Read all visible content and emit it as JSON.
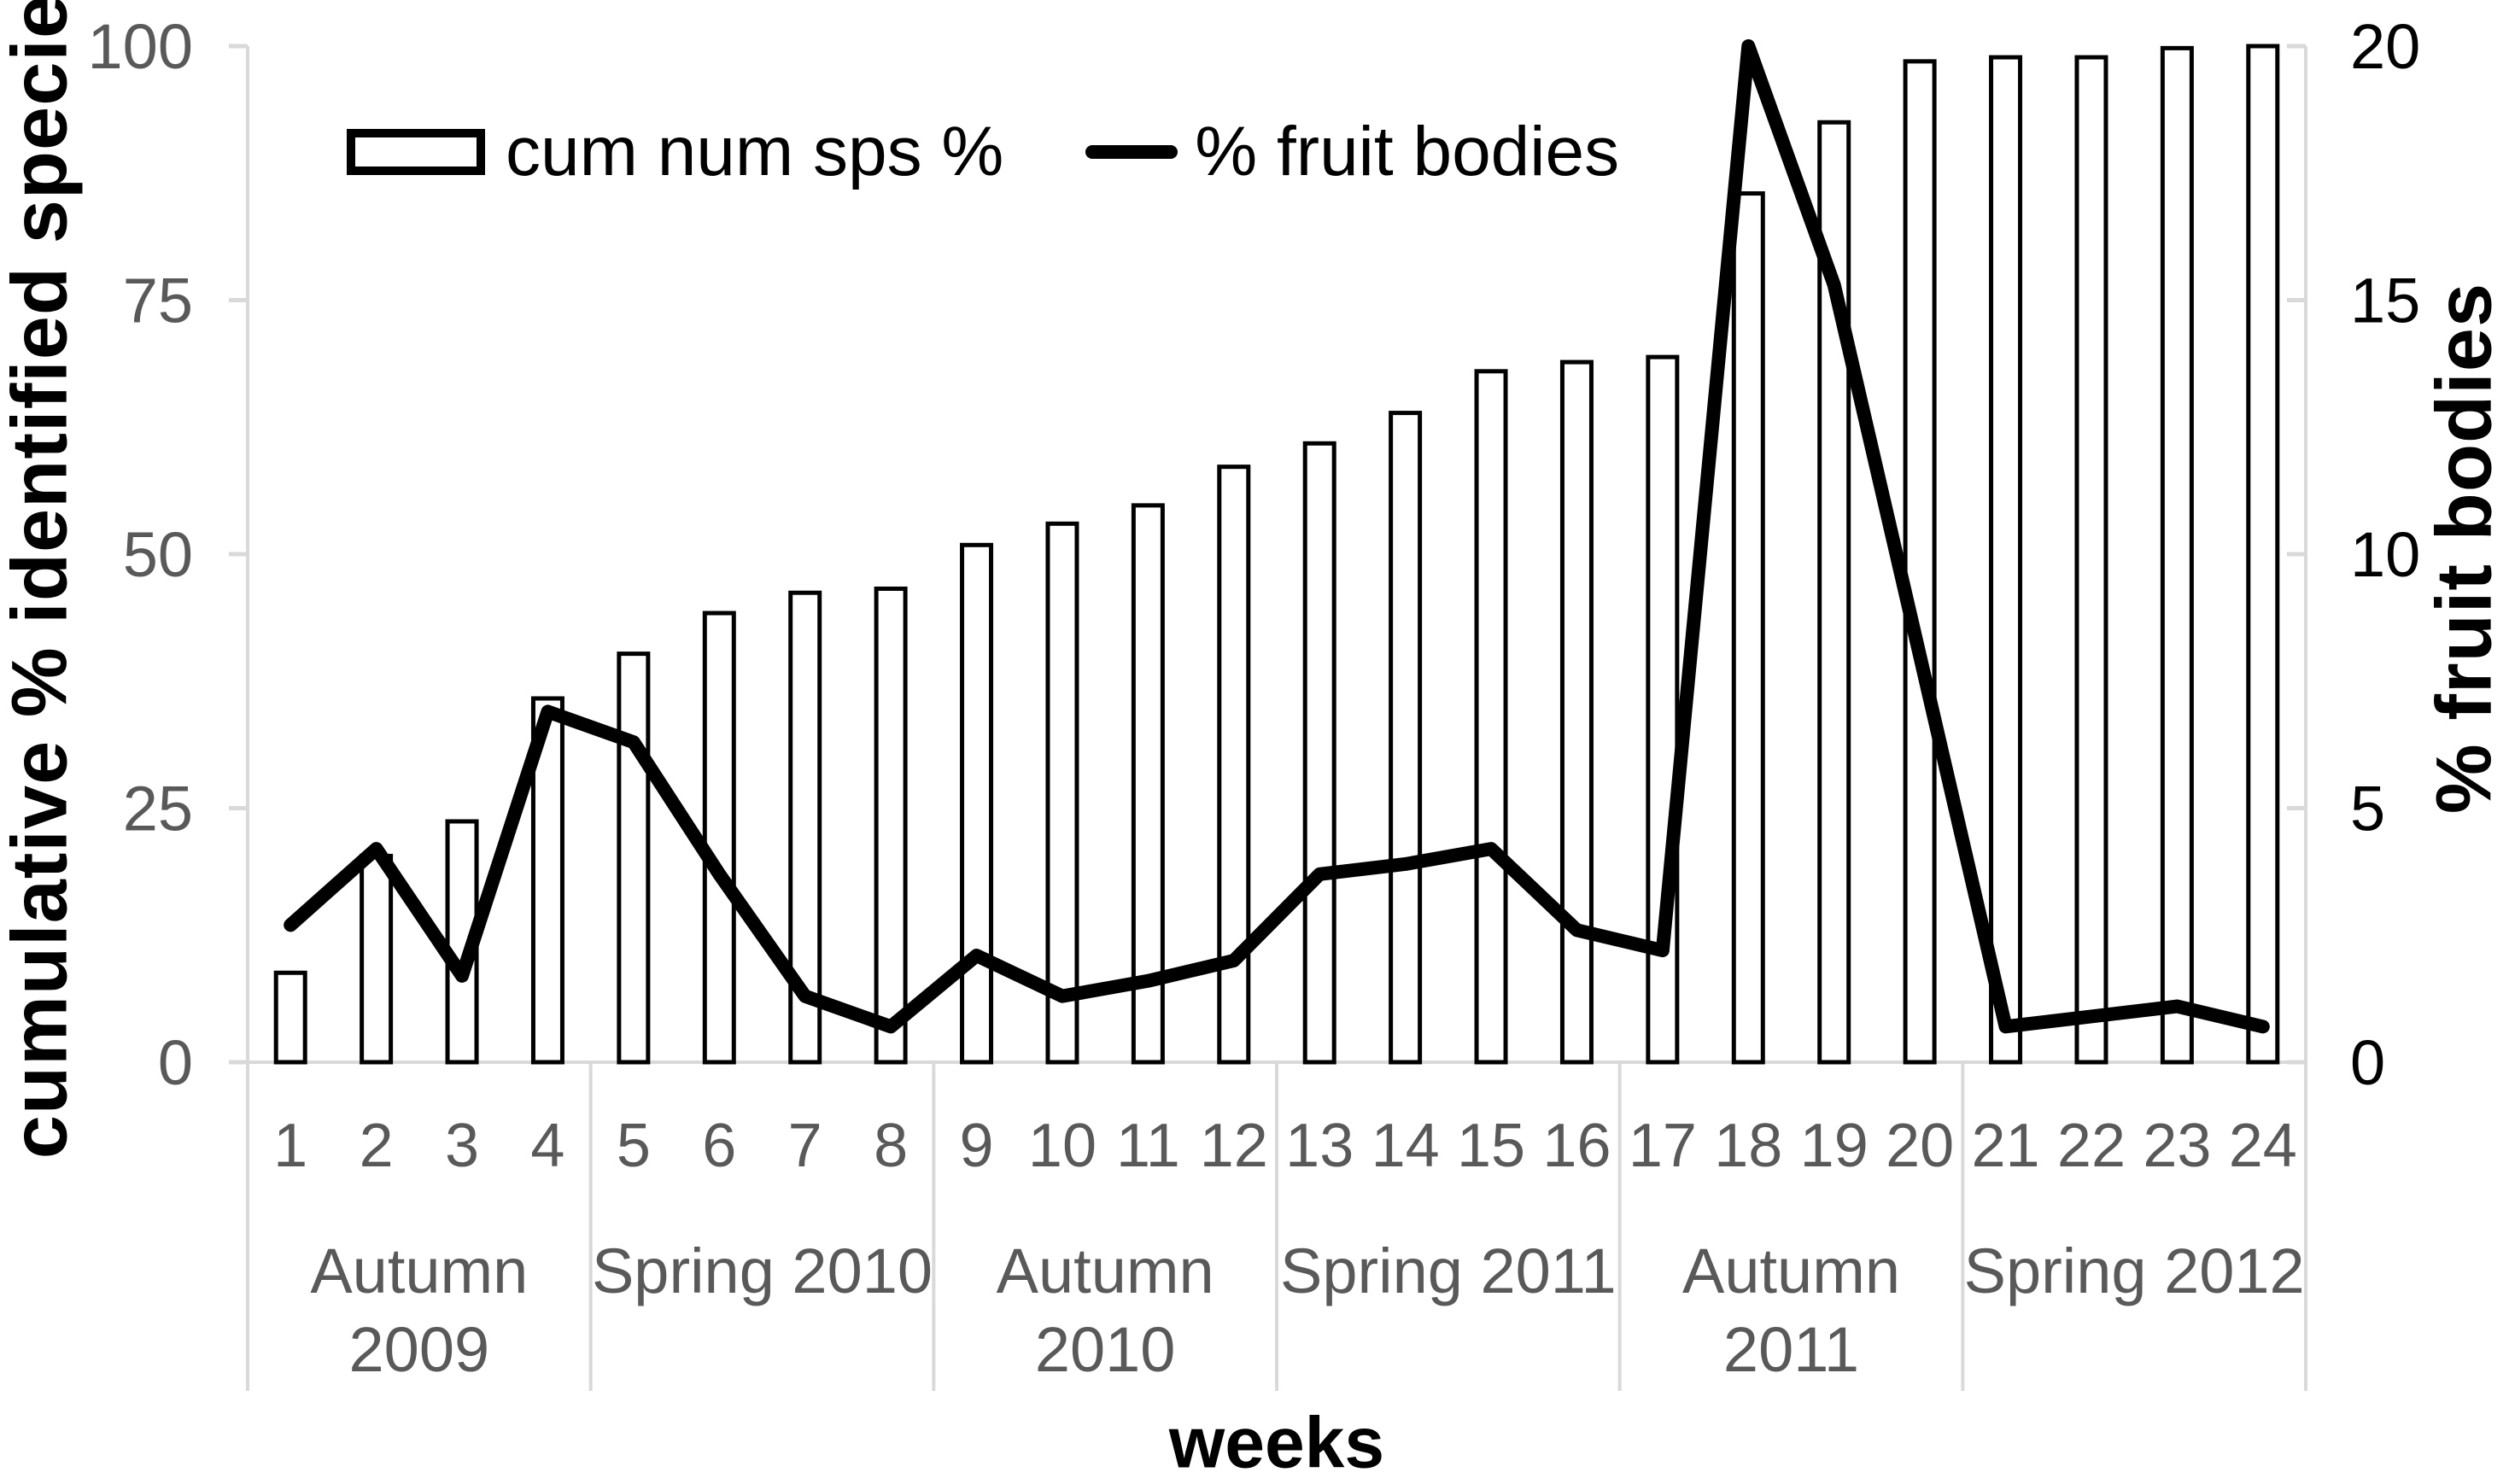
{
  "chart_data": {
    "type": "bar",
    "subtype": "combo-bar-line-dual-axis",
    "title": "",
    "xlabel": "weeks",
    "ylabel_left": "cumulative % identified species",
    "ylabel_right": "% fruit bodies",
    "categories": [
      "1",
      "2",
      "3",
      "4",
      "5",
      "6",
      "7",
      "8",
      "9",
      "10",
      "11",
      "12",
      "13",
      "14",
      "15",
      "16",
      "17",
      "18",
      "19",
      "20",
      "21",
      "22",
      "23",
      "24"
    ],
    "series": [
      {
        "name": "cum num sps %",
        "type": "bar",
        "axis": "left",
        "values": [
          8.8,
          20.3,
          23.7,
          35.8,
          40.2,
          44.2,
          46.2,
          46.6,
          50.9,
          53,
          54.8,
          58.6,
          60.9,
          63.9,
          68,
          68.9,
          69.4,
          85.5,
          92.5,
          98.5,
          98.9,
          98.9,
          99.8,
          100
        ]
      },
      {
        "name": "% fruit bodies",
        "type": "line",
        "axis": "right",
        "values": [
          2.7,
          4.2,
          1.7,
          6.9,
          6.3,
          3.7,
          1.3,
          0.7,
          2.1,
          1.3,
          1.6,
          2.0,
          3.7,
          3.9,
          4.2,
          2.6,
          2.2,
          20,
          15.3,
          8,
          0.7,
          0.9,
          1.1,
          0.7
        ]
      }
    ],
    "axes": {
      "left": {
        "min": 0,
        "max": 100,
        "ticks": [
          0,
          25,
          50,
          75,
          100
        ]
      },
      "right": {
        "min": 0,
        "max": 20,
        "ticks": [
          0,
          5,
          10,
          15,
          20
        ]
      }
    },
    "groups": [
      {
        "label": "Autumn 2009",
        "lines": [
          "Autumn",
          "2009"
        ],
        "span": 4
      },
      {
        "label": "Spring 2010",
        "lines": [
          "Spring 2010"
        ],
        "span": 4
      },
      {
        "label": "Autumn 2010",
        "lines": [
          "Autumn",
          "2010"
        ],
        "span": 4
      },
      {
        "label": "Spring 2011",
        "lines": [
          "Spring 2011"
        ],
        "span": 4
      },
      {
        "label": "Autumn 2011",
        "lines": [
          "Autumn",
          "2011"
        ],
        "span": 4
      },
      {
        "label": "Spring 2012",
        "lines": [
          "Spring 2012"
        ],
        "span": 4
      }
    ],
    "legend": {
      "position": "top",
      "items": [
        "cum num sps %",
        "% fruit bodies"
      ]
    },
    "grid": false
  },
  "colors": {
    "bar_fill": "#ffffff",
    "bar_stroke": "#000000",
    "line": "#000000",
    "axis_line": "#d9d9d9",
    "left_tick_label": "#595959",
    "right_tick_label": "#000000",
    "category_label": "#595959",
    "group_label": "#595959",
    "title": "#000000"
  }
}
